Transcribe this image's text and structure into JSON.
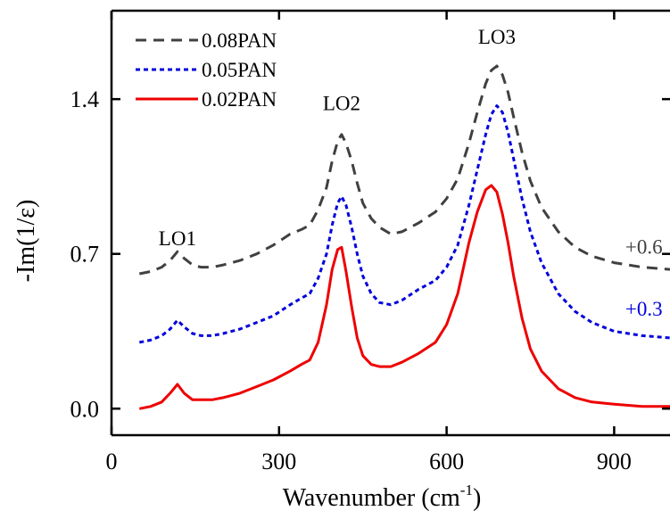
{
  "chart_data": {
    "type": "line",
    "xlabel": "Wavenumber (cm",
    "xlabel_sup": "-1",
    "xlabel_close": ")",
    "ylabel": "-Im(1/ε)",
    "xlim": [
      0,
      1000
    ],
    "ylim": [
      -0.12,
      1.8
    ],
    "x_ticks": [
      0,
      300,
      600,
      900
    ],
    "y_ticks": [
      0.0,
      0.7,
      1.4
    ],
    "y_tick_labels": [
      "0.0",
      "0.7",
      "1.4"
    ],
    "legend_position": "top-left",
    "series": [
      {
        "name": "0.08PAN",
        "color": "#404040",
        "dash": "dashed",
        "x": [
          50,
          70,
          90,
          105,
          118,
          130,
          145,
          160,
          180,
          200,
          230,
          260,
          290,
          320,
          340,
          355,
          370,
          385,
          395,
          405,
          412,
          420,
          430,
          440,
          450,
          465,
          480,
          500,
          520,
          550,
          580,
          600,
          620,
          640,
          655,
          670,
          680,
          690,
          700,
          710,
          720,
          735,
          750,
          770,
          800,
          830,
          860,
          900,
          950,
          1000
        ],
        "y": [
          0.61,
          0.62,
          0.64,
          0.67,
          0.71,
          0.68,
          0.65,
          0.64,
          0.64,
          0.65,
          0.67,
          0.7,
          0.74,
          0.79,
          0.81,
          0.83,
          0.9,
          1.0,
          1.12,
          1.21,
          1.24,
          1.2,
          1.12,
          1.02,
          0.93,
          0.86,
          0.82,
          0.79,
          0.8,
          0.84,
          0.89,
          0.95,
          1.04,
          1.2,
          1.34,
          1.47,
          1.53,
          1.55,
          1.51,
          1.43,
          1.32,
          1.16,
          1.03,
          0.91,
          0.8,
          0.73,
          0.69,
          0.66,
          0.64,
          0.63
        ]
      },
      {
        "name": "0.05PAN",
        "color": "#0000dd",
        "dash": "dotted",
        "x": [
          50,
          70,
          90,
          105,
          118,
          130,
          145,
          160,
          180,
          200,
          230,
          260,
          290,
          320,
          340,
          355,
          370,
          385,
          395,
          405,
          412,
          420,
          430,
          440,
          450,
          465,
          480,
          500,
          520,
          550,
          580,
          600,
          620,
          640,
          655,
          670,
          680,
          690,
          700,
          710,
          720,
          735,
          750,
          770,
          800,
          830,
          860,
          900,
          950,
          1000
        ],
        "y": [
          0.3,
          0.31,
          0.33,
          0.36,
          0.4,
          0.37,
          0.34,
          0.33,
          0.33,
          0.34,
          0.36,
          0.39,
          0.42,
          0.47,
          0.5,
          0.52,
          0.59,
          0.7,
          0.83,
          0.93,
          0.96,
          0.92,
          0.82,
          0.7,
          0.6,
          0.52,
          0.48,
          0.47,
          0.49,
          0.54,
          0.58,
          0.64,
          0.74,
          0.92,
          1.08,
          1.24,
          1.33,
          1.37,
          1.34,
          1.25,
          1.13,
          0.95,
          0.8,
          0.66,
          0.52,
          0.44,
          0.39,
          0.35,
          0.33,
          0.32
        ]
      },
      {
        "name": "0.02PAN",
        "color": "#ee0000",
        "dash": "solid",
        "x": [
          50,
          70,
          90,
          105,
          118,
          130,
          145,
          160,
          180,
          200,
          230,
          260,
          290,
          320,
          340,
          355,
          370,
          385,
          395,
          405,
          412,
          420,
          430,
          440,
          450,
          465,
          480,
          500,
          520,
          550,
          580,
          600,
          620,
          640,
          655,
          670,
          680,
          690,
          700,
          710,
          720,
          735,
          750,
          770,
          800,
          830,
          860,
          900,
          950,
          1000
        ],
        "y": [
          0.0,
          0.01,
          0.03,
          0.07,
          0.11,
          0.07,
          0.04,
          0.04,
          0.04,
          0.05,
          0.07,
          0.1,
          0.13,
          0.17,
          0.2,
          0.22,
          0.3,
          0.47,
          0.63,
          0.72,
          0.73,
          0.62,
          0.46,
          0.32,
          0.24,
          0.2,
          0.19,
          0.19,
          0.21,
          0.25,
          0.3,
          0.38,
          0.52,
          0.75,
          0.89,
          0.99,
          1.01,
          0.98,
          0.88,
          0.75,
          0.6,
          0.41,
          0.27,
          0.17,
          0.09,
          0.05,
          0.03,
          0.02,
          0.01,
          0.01
        ]
      }
    ],
    "annotations": {
      "peaks": [
        {
          "text": "LO1",
          "x": 118,
          "y": 0.74
        },
        {
          "text": "LO2",
          "x": 412,
          "y": 1.35
        },
        {
          "text": "LO3",
          "x": 690,
          "y": 1.65
        }
      ],
      "offsets": [
        {
          "text": "+0.6",
          "x": 920,
          "y": 0.7,
          "color": "#404040"
        },
        {
          "text": "+0.3",
          "x": 920,
          "y": 0.42,
          "color": "#0000dd"
        }
      ]
    }
  }
}
